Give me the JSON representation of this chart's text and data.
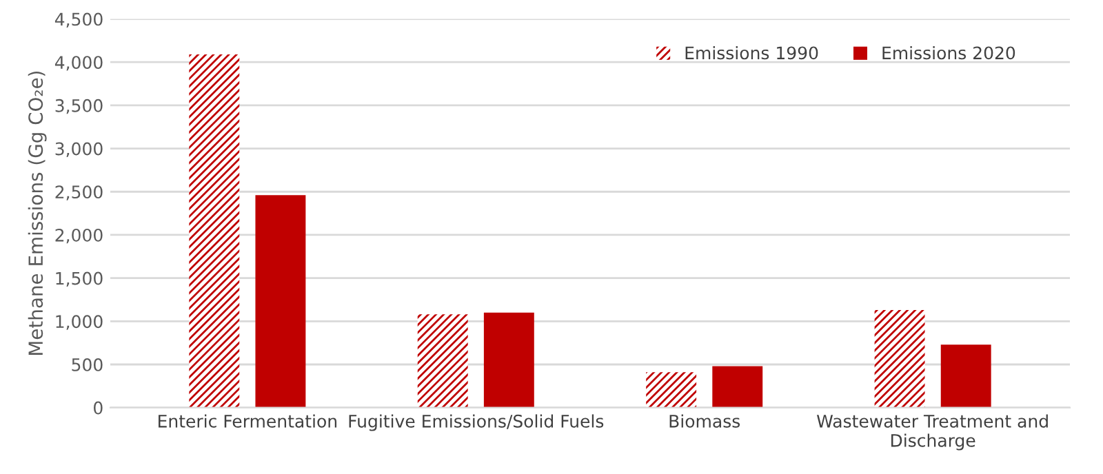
{
  "chart_data": {
    "type": "bar",
    "ylabel": "Methane Emissions (Gg CO₂e)",
    "categories": [
      "Enteric Fermentation",
      "Fugitive Emissions/Solid Fuels",
      "Biomass",
      "Wastewater Treatment and Discharge"
    ],
    "series": [
      {
        "name": "Emissions 1990",
        "color": "#c00000",
        "values": [
          4090,
          1080,
          410,
          1130
        ]
      },
      {
        "name": "Emissions 2020",
        "color": "#c00000",
        "values": [
          2460,
          1100,
          480,
          730
        ]
      }
    ],
    "ylim": [
      0,
      4500
    ],
    "yticks": [
      0,
      {
        "value": 500,
        "label": "500"
      },
      {
        "value": 1000,
        "label": "1,000"
      },
      {
        "value": 1500,
        "label": "1,500"
      },
      {
        "value": 2000,
        "label": "2,000"
      },
      {
        "value": 2500,
        "label": "2,500"
      },
      {
        "value": 3000,
        "label": "3,000"
      },
      {
        "value": 3500,
        "label": "3,500"
      },
      {
        "value": 4000,
        "label": "4,000"
      },
      {
        "value": 4500,
        "label": "4,500"
      }
    ],
    "grid": "y",
    "legend": "top right"
  }
}
